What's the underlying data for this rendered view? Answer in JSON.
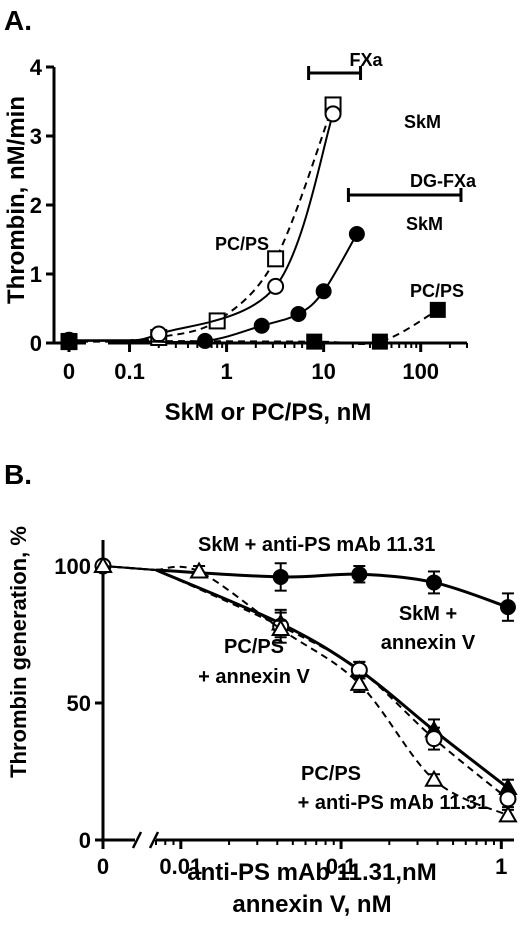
{
  "chart_data": [
    {
      "panel": "A.",
      "type": "line",
      "xlabel": "SkM or PC/PS, nM",
      "ylabel": "Thrombin, nM/min",
      "x_scale": "log with zero on broken axis",
      "xticks": [
        "0",
        "0.1",
        "1",
        "10",
        "100"
      ],
      "yticks": [
        "0",
        "1",
        "2",
        "3",
        "4"
      ],
      "ylim": [
        0,
        4
      ],
      "xlim": [
        0.06,
        300
      ],
      "annotations": [
        {
          "text": "FXa",
          "bracket": [
            7,
            24
          ]
        },
        {
          "text": "DG-FXa",
          "bracket": [
            18,
            260
          ]
        }
      ],
      "series": [
        {
          "marker": "open-square",
          "dash": true,
          "label": "PC/PS",
          "zero": 0.02,
          "x": [
            0.2,
            0.8,
            3.2,
            12.5
          ],
          "y": [
            0.08,
            0.32,
            1.22,
            3.45
          ]
        },
        {
          "marker": "open-circle",
          "dash": false,
          "label": "SkM",
          "zero": 0.04,
          "x": [
            0.2,
            3.2,
            12.5
          ],
          "y": [
            0.13,
            0.82,
            3.32
          ]
        },
        {
          "marker": "filled-circle",
          "dash": false,
          "label": "SkM",
          "zero": 0.03,
          "x": [
            0.6,
            2.3,
            5.5,
            10,
            22
          ],
          "y": [
            0.03,
            0.25,
            0.42,
            0.75,
            1.58
          ]
        },
        {
          "marker": "filled-square",
          "dash": true,
          "label": "PC/PS",
          "zero": 0.03,
          "x": [
            8,
            38,
            150
          ],
          "y": [
            0.02,
            0.02,
            0.48
          ]
        }
      ]
    },
    {
      "panel": "B.",
      "type": "line",
      "xlabel": [
        "anti-PS mAb 11.31,nM",
        "annexin V, nM"
      ],
      "ylabel": "Thrombin generation, %",
      "x_scale": "log with zero on broken axis",
      "xticks": [
        "0",
        "0.01",
        "0.1",
        "1"
      ],
      "yticks": [
        "0",
        "50",
        "100"
      ],
      "ylim": [
        0,
        110
      ],
      "xlim": [
        0.007,
        1.2
      ],
      "series": [
        {
          "marker": "filled-circle",
          "dash": false,
          "label": "SkM + anti-PS mAb 11.31",
          "zero": 100,
          "x": [
            0.042,
            0.13,
            0.38,
            1.1
          ],
          "y": [
            96,
            97,
            94,
            85
          ],
          "err": [
            5,
            3,
            4,
            5
          ]
        },
        {
          "marker": "filled-triangle",
          "dash": false,
          "label": [
            "SkM +",
            "annexin V"
          ],
          "zero": 100,
          "x": [
            0.042,
            0.13,
            0.38,
            1.1
          ],
          "y": [
            79,
            62,
            40,
            19
          ],
          "err": [
            4,
            3,
            4,
            3
          ]
        },
        {
          "marker": "open-circle",
          "dash": true,
          "label": [
            "PC/PS",
            "+ annexin V"
          ],
          "zero": 100,
          "x": [
            0.042,
            0.13,
            0.38,
            1.1
          ],
          "y": [
            78,
            62,
            37,
            15
          ],
          "err": [
            6,
            3,
            4,
            3
          ]
        },
        {
          "marker": "open-triangle",
          "dash": true,
          "label": [
            "PC/PS",
            "+ anti-PS mAb 11.31"
          ],
          "zero": 100,
          "x": [
            0.013,
            0.042,
            0.13,
            0.38,
            1.1
          ],
          "y": [
            98,
            77,
            57,
            22,
            9
          ],
          "err": [
            2,
            3,
            3,
            2,
            2
          ]
        }
      ]
    }
  ]
}
